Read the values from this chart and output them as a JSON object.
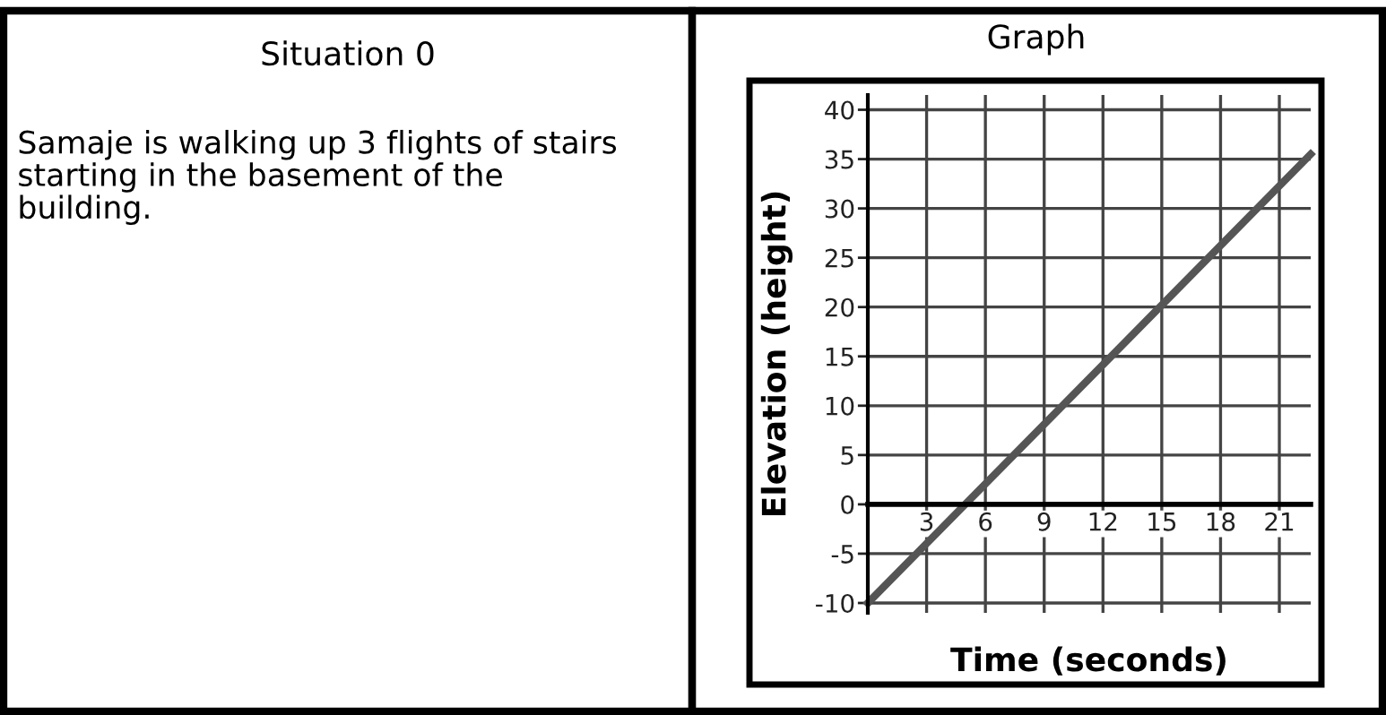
{
  "chart_data": [
    {
      "type": "other",
      "title": "Situation 0",
      "annotations": [
        "Samaje is walking up 3 flights of stairs\nstarting in the basement of the\nbuilding."
      ]
    },
    {
      "type": "line",
      "title": "Graph",
      "xlabel": "Time (seconds)",
      "ylabel": "Elevation (height)",
      "x": [
        0,
        22.6
      ],
      "series": [
        {
          "color": "#555555",
          "values": [
            -10,
            35.5
          ]
        }
      ],
      "xlim": [
        0,
        22.6
      ],
      "ylim": [
        -11,
        41.5
      ],
      "xticks": [
        3,
        6,
        9,
        12,
        15,
        18,
        21
      ],
      "yticks": [
        40,
        35,
        30,
        25,
        20,
        15,
        10,
        5,
        0,
        -5,
        -10
      ],
      "grid": true,
      "legend": false,
      "marker": "none",
      "line_style": "solid"
    }
  ]
}
